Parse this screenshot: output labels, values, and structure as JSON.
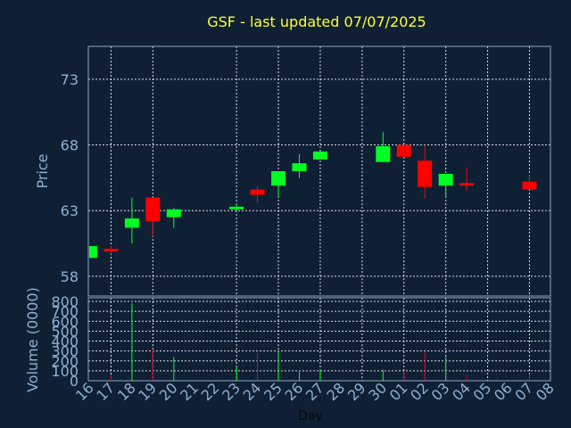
{
  "chart_data": {
    "type": "candlestick",
    "title": "GSF - last updated 07/07/2025",
    "xlabel": "Day",
    "ylabel": "Price",
    "volume_label": "Volume (0000)",
    "categories": [
      "16",
      "17",
      "18",
      "19",
      "20",
      "21",
      "22",
      "23",
      "24",
      "25",
      "26",
      "27",
      "28",
      "29",
      "30",
      "01",
      "02",
      "03",
      "04",
      "05",
      "06",
      "07",
      "08"
    ],
    "price_ticks": [
      "58",
      "63",
      "68",
      "73"
    ],
    "ylim": [
      56.5,
      75.5
    ],
    "volume_ticks": [
      "0",
      "100",
      "200",
      "300",
      "400",
      "500",
      "600",
      "700",
      "800"
    ],
    "volume_ylim": [
      0,
      800
    ],
    "colors": {
      "up": "#00ff22",
      "down": "#ff0000",
      "background": "#0f2035",
      "title": "#ffff33",
      "axis": "#8fb0d0"
    },
    "candles": [
      {
        "day": "16",
        "open": 59.4,
        "high": 60.3,
        "low": 59.4,
        "close": 60.3
      },
      {
        "day": "17",
        "open": 60.1,
        "high": 60.3,
        "low": 59.7,
        "close": 59.9
      },
      {
        "day": "18",
        "open": 61.7,
        "high": 64.0,
        "low": 60.5,
        "close": 62.4
      },
      {
        "day": "19",
        "open": 64.0,
        "high": 64.0,
        "low": 61.0,
        "close": 62.2
      },
      {
        "day": "20",
        "open": 62.5,
        "high": 63.2,
        "low": 61.7,
        "close": 63.1
      },
      {
        "day": "23",
        "open": 63.1,
        "high": 63.5,
        "low": 62.9,
        "close": 63.3
      },
      {
        "day": "24",
        "open": 64.6,
        "high": 64.9,
        "low": 63.6,
        "close": 64.2
      },
      {
        "day": "25",
        "open": 64.9,
        "high": 66.0,
        "low": 64.0,
        "close": 66.0
      },
      {
        "day": "26",
        "open": 66.0,
        "high": 67.3,
        "low": 65.5,
        "close": 66.6
      },
      {
        "day": "27",
        "open": 66.9,
        "high": 67.5,
        "low": 66.9,
        "close": 67.5
      },
      {
        "day": "30",
        "open": 66.7,
        "high": 69.0,
        "low": 66.7,
        "close": 67.9
      },
      {
        "day": "01",
        "open": 68.0,
        "high": 68.0,
        "low": 67.1,
        "close": 67.1
      },
      {
        "day": "02",
        "open": 66.8,
        "high": 68.0,
        "low": 63.9,
        "close": 64.8
      },
      {
        "day": "03",
        "open": 64.9,
        "high": 65.8,
        "low": 64.0,
        "close": 65.8
      },
      {
        "day": "04",
        "open": 65.1,
        "high": 66.3,
        "low": 64.5,
        "close": 64.9
      },
      {
        "day": "07",
        "open": 65.2,
        "high": 65.7,
        "low": 64.6,
        "close": 64.6
      }
    ],
    "volume": [
      {
        "day": "16",
        "value": 0,
        "dir": "up"
      },
      {
        "day": "17",
        "value": 60,
        "dir": "down"
      },
      {
        "day": "18",
        "value": 780,
        "dir": "up"
      },
      {
        "day": "19",
        "value": 320,
        "dir": "down"
      },
      {
        "day": "20",
        "value": 240,
        "dir": "up"
      },
      {
        "day": "23",
        "value": 140,
        "dir": "up"
      },
      {
        "day": "24",
        "value": 280,
        "dir": "down"
      },
      {
        "day": "25",
        "value": 300,
        "dir": "up"
      },
      {
        "day": "26",
        "value": 90,
        "dir": "up"
      },
      {
        "day": "27",
        "value": 110,
        "dir": "up"
      },
      {
        "day": "30",
        "value": 110,
        "dir": "up"
      },
      {
        "day": "01",
        "value": 100,
        "dir": "down"
      },
      {
        "day": "02",
        "value": 290,
        "dir": "down"
      },
      {
        "day": "03",
        "value": 240,
        "dir": "up"
      },
      {
        "day": "04",
        "value": 60,
        "dir": "down"
      },
      {
        "day": "07",
        "value": 70,
        "dir": "down"
      }
    ]
  }
}
